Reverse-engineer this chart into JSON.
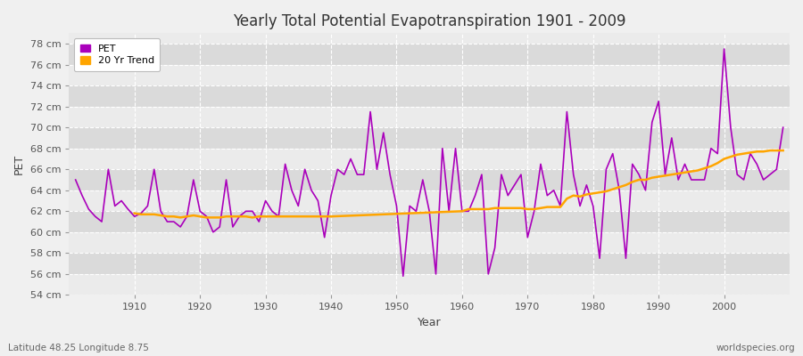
{
  "title": "Yearly Total Potential Evapotranspiration 1901 - 2009",
  "xlabel": "Year",
  "ylabel": "PET",
  "lat_lon_label": "Latitude 48.25 Longitude 8.75",
  "source_label": "worldspecies.org",
  "pet_color": "#AA00BB",
  "trend_color": "#FFA500",
  "bg_light": "#EBEBEB",
  "bg_dark": "#DADADA",
  "grid_color": "#FFFFFF",
  "ylim": [
    54,
    79
  ],
  "ytick_step": 2,
  "years": [
    1901,
    1902,
    1903,
    1904,
    1905,
    1906,
    1907,
    1908,
    1909,
    1910,
    1911,
    1912,
    1913,
    1914,
    1915,
    1916,
    1917,
    1918,
    1919,
    1920,
    1921,
    1922,
    1923,
    1924,
    1925,
    1926,
    1927,
    1928,
    1929,
    1930,
    1931,
    1932,
    1933,
    1934,
    1935,
    1936,
    1937,
    1938,
    1939,
    1940,
    1941,
    1942,
    1943,
    1944,
    1945,
    1946,
    1947,
    1948,
    1949,
    1950,
    1951,
    1952,
    1953,
    1954,
    1955,
    1956,
    1957,
    1958,
    1959,
    1960,
    1961,
    1962,
    1963,
    1964,
    1965,
    1966,
    1967,
    1968,
    1969,
    1970,
    1971,
    1972,
    1973,
    1974,
    1975,
    1976,
    1977,
    1978,
    1979,
    1980,
    1981,
    1982,
    1983,
    1984,
    1985,
    1986,
    1987,
    1988,
    1989,
    1990,
    1991,
    1992,
    1993,
    1994,
    1995,
    1996,
    1997,
    1998,
    1999,
    2000,
    2001,
    2002,
    2003,
    2004,
    2005,
    2006,
    2007,
    2008,
    2009
  ],
  "pet_values": [
    65.0,
    63.5,
    62.2,
    61.5,
    61.0,
    66.0,
    62.5,
    63.0,
    62.2,
    61.5,
    61.8,
    62.5,
    66.0,
    62.0,
    61.0,
    61.0,
    60.5,
    61.5,
    65.0,
    62.0,
    61.5,
    60.0,
    60.5,
    65.0,
    60.5,
    61.5,
    62.0,
    62.0,
    61.0,
    63.0,
    62.0,
    61.5,
    66.5,
    64.0,
    62.5,
    66.0,
    64.0,
    63.0,
    59.5,
    63.5,
    66.0,
    65.5,
    67.0,
    65.5,
    65.5,
    71.5,
    66.0,
    69.5,
    65.5,
    62.5,
    55.8,
    62.5,
    62.0,
    65.0,
    62.0,
    56.0,
    68.0,
    62.0,
    68.0,
    62.0,
    62.0,
    63.5,
    65.5,
    56.0,
    58.5,
    65.5,
    63.5,
    64.5,
    65.5,
    59.5,
    62.0,
    66.5,
    63.5,
    64.0,
    62.5,
    71.5,
    65.5,
    62.5,
    64.5,
    62.5,
    57.5,
    66.0,
    67.5,
    64.0,
    57.5,
    66.5,
    65.5,
    64.0,
    70.5,
    72.5,
    65.5,
    69.0,
    65.0,
    66.5,
    65.0,
    65.0,
    65.0,
    68.0,
    67.5,
    77.5,
    70.0,
    65.5,
    65.0,
    67.5,
    66.5,
    65.0,
    65.5,
    66.0,
    70.0
  ],
  "trend_years": [
    1910,
    1911,
    1912,
    1913,
    1914,
    1915,
    1916,
    1917,
    1918,
    1919,
    1920,
    1921,
    1922,
    1923,
    1924,
    1925,
    1926,
    1927,
    1928,
    1929,
    1930,
    1931,
    1932,
    1933,
    1934,
    1935,
    1936,
    1937,
    1938,
    1939,
    1940,
    1960,
    1961,
    1962,
    1963,
    1964,
    1965,
    1966,
    1967,
    1968,
    1969,
    1970,
    1971,
    1972,
    1973,
    1974,
    1975,
    1976,
    1977,
    1978,
    1979,
    1980,
    1981,
    1982,
    1983,
    1984,
    1985,
    1986,
    1987,
    1988,
    1989,
    1990,
    1991,
    1992,
    1993,
    1994,
    1995,
    1996,
    1997,
    1998,
    1999,
    2000,
    2001,
    2002,
    2003,
    2004,
    2005,
    2006,
    2007,
    2008,
    2009
  ],
  "trend_values": [
    61.8,
    61.7,
    61.7,
    61.7,
    61.6,
    61.5,
    61.5,
    61.4,
    61.5,
    61.6,
    61.5,
    61.4,
    61.4,
    61.4,
    61.5,
    61.5,
    61.5,
    61.5,
    61.4,
    61.5,
    61.5,
    61.5,
    61.5,
    61.5,
    61.5,
    61.5,
    61.5,
    61.5,
    61.5,
    61.5,
    61.5,
    62.0,
    62.2,
    62.2,
    62.2,
    62.2,
    62.3,
    62.3,
    62.3,
    62.3,
    62.3,
    62.2,
    62.2,
    62.3,
    62.4,
    62.4,
    62.4,
    63.2,
    63.5,
    63.4,
    63.6,
    63.7,
    63.8,
    63.9,
    64.1,
    64.3,
    64.5,
    64.8,
    65.0,
    65.0,
    65.2,
    65.3,
    65.4,
    65.5,
    65.6,
    65.7,
    65.8,
    65.9,
    66.1,
    66.3,
    66.6,
    67.0,
    67.2,
    67.4,
    67.5,
    67.6,
    67.7,
    67.7,
    67.8,
    67.8,
    67.8
  ],
  "xticks": [
    1910,
    1920,
    1930,
    1940,
    1950,
    1960,
    1970,
    1980,
    1990,
    2000
  ],
  "xlim": [
    1900,
    2010
  ]
}
